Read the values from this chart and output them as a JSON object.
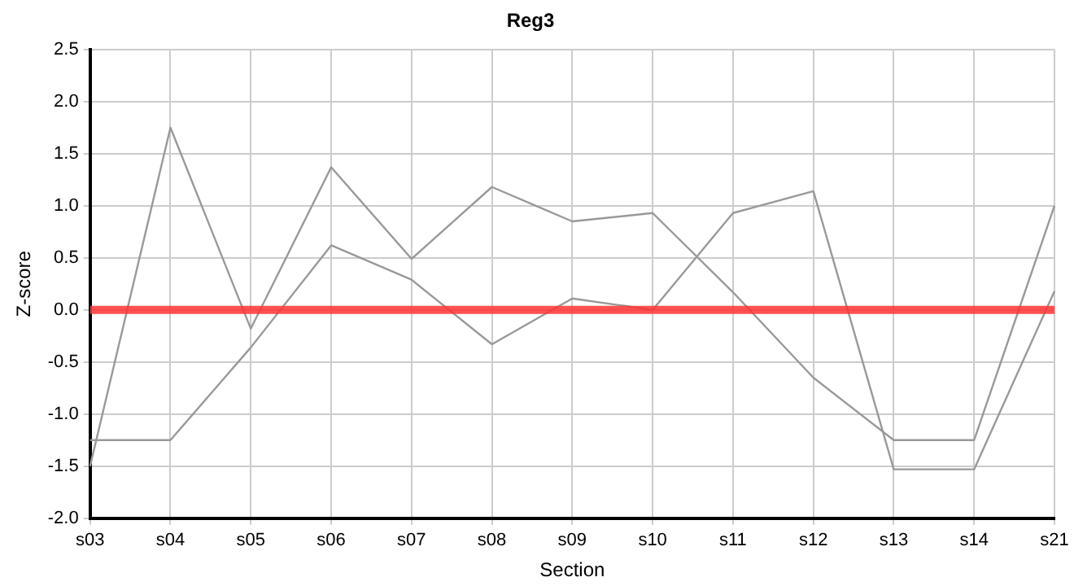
{
  "chart_data": {
    "type": "line",
    "title": "Reg3",
    "xlabel": "Section",
    "ylabel": "Z-score",
    "categories": [
      "s03",
      "s04",
      "s05",
      "s06",
      "s07",
      "s08",
      "s09",
      "s10",
      "s11",
      "s12",
      "s13",
      "s14",
      "s21"
    ],
    "series": [
      {
        "color": "#999999",
        "values": [
          -1.5,
          1.75,
          -0.18,
          1.37,
          0.49,
          1.18,
          0.85,
          0.93,
          0.17,
          -0.65,
          -1.25,
          -1.25,
          1.0
        ]
      },
      {
        "color": "#999999",
        "values": [
          -1.25,
          -1.25,
          -0.36,
          0.62,
          0.29,
          -0.33,
          0.11,
          0.0,
          0.93,
          1.14,
          -1.53,
          -1.53,
          0.18
        ]
      }
    ],
    "ylim": [
      -2.0,
      2.5
    ],
    "yticks": [
      {
        "value": -2,
        "label": "-2.0"
      },
      {
        "value": -1.5,
        "label": "-1.5"
      },
      {
        "value": -1,
        "label": "-1.0"
      },
      {
        "value": -0.5,
        "label": "-0.5"
      },
      {
        "value": 0,
        "label": "0.0"
      },
      {
        "value": 0.5,
        "label": "0.5"
      },
      {
        "value": 1,
        "label": "1.0"
      },
      {
        "value": 1.5,
        "label": "1.5"
      },
      {
        "value": 2,
        "label": "2.0"
      },
      {
        "value": 2.5,
        "label": "2.5"
      }
    ],
    "ref_lines": [
      {
        "axis": "y",
        "value": 0,
        "color": "#ff3333"
      }
    ],
    "grid": true,
    "legend": false,
    "marker": "none",
    "line_style": "solid"
  }
}
